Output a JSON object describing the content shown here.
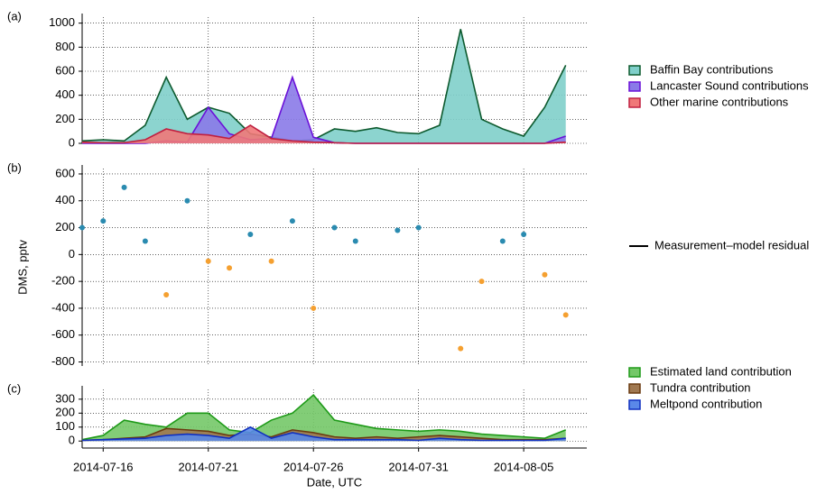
{
  "chart_data": [
    {
      "type": "area",
      "panel_label": "(a)",
      "x": [
        "2014-07-15",
        "2014-07-16",
        "2014-07-17",
        "2014-07-18",
        "2014-07-19",
        "2014-07-20",
        "2014-07-21",
        "2014-07-22",
        "2014-07-23",
        "2014-07-24",
        "2014-07-25",
        "2014-07-26",
        "2014-07-27",
        "2014-07-28",
        "2014-07-29",
        "2014-07-30",
        "2014-07-31",
        "2014-08-01",
        "2014-08-02",
        "2014-08-03",
        "2014-08-04",
        "2014-08-05",
        "2014-08-06",
        "2014-08-07"
      ],
      "xlim": [
        "2014-07-15",
        "2014-08-08"
      ],
      "xticks": [
        "2014-07-16",
        "2014-07-21",
        "2014-07-26",
        "2014-07-31",
        "2014-08-05"
      ],
      "ylim": [
        0,
        1050
      ],
      "yticks": [
        0,
        200,
        400,
        600,
        800,
        1000
      ],
      "grid": true,
      "series": [
        {
          "name": "Baffin Bay contributions",
          "color": "#7fcfca",
          "edge": "#0d5a2e",
          "values": [
            20,
            30,
            20,
            150,
            550,
            200,
            300,
            250,
            80,
            50,
            20,
            30,
            120,
            100,
            130,
            90,
            80,
            150,
            950,
            200,
            120,
            60,
            300,
            650
          ]
        },
        {
          "name": "Lancaster Sound contributions",
          "color": "#8a7ae8",
          "edge": "#6a10d8",
          "values": [
            0,
            0,
            0,
            0,
            20,
            10,
            300,
            80,
            30,
            40,
            550,
            50,
            5,
            0,
            0,
            0,
            0,
            0,
            0,
            0,
            0,
            0,
            0,
            60
          ]
        },
        {
          "name": "Other marine contributions",
          "color": "#f07878",
          "edge": "#c02040",
          "values": [
            10,
            5,
            5,
            30,
            120,
            80,
            70,
            40,
            150,
            40,
            20,
            10,
            5,
            0,
            0,
            0,
            0,
            0,
            0,
            0,
            0,
            0,
            0,
            10
          ]
        }
      ]
    },
    {
      "type": "residual",
      "panel_label": "(b)",
      "ylabel": "DMS, pptv",
      "x": [
        "2014-07-15",
        "2014-07-16",
        "2014-07-17",
        "2014-07-18",
        "2014-07-19",
        "2014-07-20",
        "2014-07-21",
        "2014-07-22",
        "2014-07-23",
        "2014-07-24",
        "2014-07-25",
        "2014-07-26",
        "2014-07-27",
        "2014-07-28",
        "2014-07-29",
        "2014-07-30",
        "2014-07-31",
        "2014-08-01",
        "2014-08-02",
        "2014-08-03",
        "2014-08-04",
        "2014-08-05",
        "2014-08-06",
        "2014-08-07"
      ],
      "xlim": [
        "2014-07-15",
        "2014-08-08"
      ],
      "xticks": [
        "2014-07-16",
        "2014-07-21",
        "2014-07-26",
        "2014-07-31",
        "2014-08-05"
      ],
      "ylim": [
        -830,
        640
      ],
      "yticks": [
        -800,
        -600,
        -400,
        -200,
        0,
        200,
        400,
        600
      ],
      "grid": true,
      "positive_color": "#2a8bb0",
      "negative_color": "#f5a030",
      "series": [
        {
          "name": "Measurement–model residual",
          "color": "#000000",
          "values": [
            200,
            250,
            500,
            100,
            -300,
            400,
            -50,
            -100,
            150,
            -50,
            250,
            -400,
            200,
            100,
            null,
            180,
            200,
            null,
            -700,
            -200,
            100,
            150,
            -150,
            -450
          ]
        }
      ]
    },
    {
      "type": "area",
      "panel_label": "(c)",
      "xlabel": "Date, UTC",
      "x": [
        "2014-07-15",
        "2014-07-16",
        "2014-07-17",
        "2014-07-18",
        "2014-07-19",
        "2014-07-20",
        "2014-07-21",
        "2014-07-22",
        "2014-07-23",
        "2014-07-24",
        "2014-07-25",
        "2014-07-26",
        "2014-07-27",
        "2014-07-28",
        "2014-07-29",
        "2014-07-30",
        "2014-07-31",
        "2014-08-01",
        "2014-08-02",
        "2014-08-03",
        "2014-08-04",
        "2014-08-05",
        "2014-08-06",
        "2014-08-07"
      ],
      "xlim": [
        "2014-07-15",
        "2014-08-08"
      ],
      "xticks": [
        "2014-07-16",
        "2014-07-21",
        "2014-07-26",
        "2014-07-31",
        "2014-08-05"
      ],
      "ylim": [
        -50,
        370
      ],
      "yticks": [
        0,
        100,
        200,
        300
      ],
      "grid": true,
      "series": [
        {
          "name": "Estimated land contribution",
          "color": "#74c868",
          "edge": "#1e9a18",
          "values": [
            10,
            40,
            150,
            120,
            100,
            200,
            200,
            80,
            60,
            150,
            200,
            330,
            150,
            120,
            90,
            80,
            70,
            80,
            70,
            50,
            40,
            30,
            20,
            80
          ]
        },
        {
          "name": "Tundra contribution",
          "color": "#a07850",
          "edge": "#6a3a10",
          "values": [
            5,
            10,
            20,
            30,
            90,
            80,
            70,
            40,
            50,
            30,
            80,
            60,
            30,
            20,
            30,
            20,
            30,
            40,
            30,
            20,
            10,
            10,
            10,
            20
          ]
        },
        {
          "name": "Meltpond contribution",
          "color": "#5a88e8",
          "edge": "#1030c0",
          "values": [
            5,
            10,
            15,
            20,
            40,
            50,
            40,
            20,
            100,
            20,
            60,
            30,
            10,
            10,
            10,
            10,
            5,
            20,
            10,
            5,
            5,
            5,
            5,
            20
          ]
        }
      ]
    }
  ]
}
